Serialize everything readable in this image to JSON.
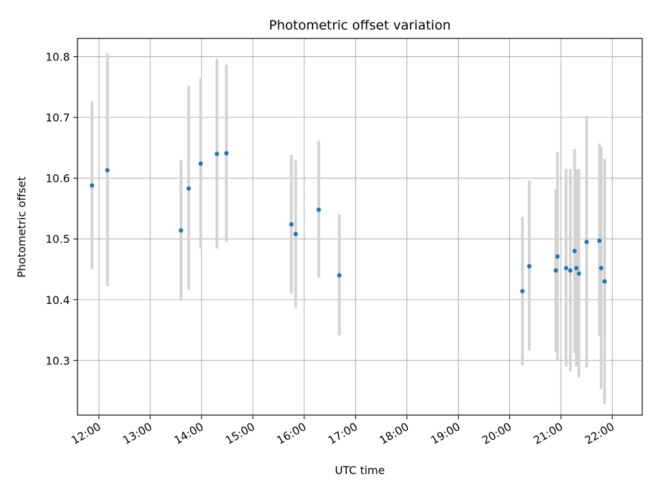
{
  "chart_data": {
    "type": "scatter",
    "title": "Photometric offset variation",
    "xlabel": "UTC time",
    "ylabel": "Photometric offset",
    "x_axis_kind": "time",
    "xlim": [
      "11:35",
      "22:35"
    ],
    "ylim": [
      10.21,
      10.83
    ],
    "xticks": [
      "12:00",
      "13:00",
      "14:00",
      "15:00",
      "16:00",
      "17:00",
      "18:00",
      "19:00",
      "20:00",
      "21:00",
      "22:00"
    ],
    "yticks": [
      10.3,
      10.4,
      10.5,
      10.6,
      10.7,
      10.8
    ],
    "grid": true,
    "colors": {
      "points": "#1f77b4",
      "errorbars": "#d3d3d3",
      "grid": "#b0b0b0"
    },
    "points": [
      {
        "x": "11:52",
        "y": 10.588,
        "ylow": 10.45,
        "yhigh": 10.726
      },
      {
        "x": "12:10",
        "y": 10.613,
        "ylow": 10.422,
        "yhigh": 10.805
      },
      {
        "x": "13:36",
        "y": 10.514,
        "ylow": 10.398,
        "yhigh": 10.63
      },
      {
        "x": "13:45",
        "y": 10.583,
        "ylow": 10.416,
        "yhigh": 10.752
      },
      {
        "x": "13:59",
        "y": 10.624,
        "ylow": 10.484,
        "yhigh": 10.765
      },
      {
        "x": "14:18",
        "y": 10.64,
        "ylow": 10.484,
        "yhigh": 10.796
      },
      {
        "x": "14:29",
        "y": 10.641,
        "ylow": 10.495,
        "yhigh": 10.787
      },
      {
        "x": "15:45",
        "y": 10.524,
        "ylow": 10.41,
        "yhigh": 10.638
      },
      {
        "x": "15:50",
        "y": 10.508,
        "ylow": 10.387,
        "yhigh": 10.63
      },
      {
        "x": "16:17",
        "y": 10.548,
        "ylow": 10.436,
        "yhigh": 10.661
      },
      {
        "x": "16:41",
        "y": 10.44,
        "ylow": 10.341,
        "yhigh": 10.54
      },
      {
        "x": "20:15",
        "y": 10.414,
        "ylow": 10.292,
        "yhigh": 10.536
      },
      {
        "x": "20:23",
        "y": 10.455,
        "ylow": 10.316,
        "yhigh": 10.596
      },
      {
        "x": "20:54",
        "y": 10.448,
        "ylow": 10.314,
        "yhigh": 10.582
      },
      {
        "x": "20:56",
        "y": 10.471,
        "ylow": 10.3,
        "yhigh": 10.643
      },
      {
        "x": "21:06",
        "y": 10.452,
        "ylow": 10.29,
        "yhigh": 10.615
      },
      {
        "x": "21:11",
        "y": 10.448,
        "ylow": 10.282,
        "yhigh": 10.615
      },
      {
        "x": "21:16",
        "y": 10.48,
        "ylow": 10.312,
        "yhigh": 10.648
      },
      {
        "x": "21:18",
        "y": 10.452,
        "ylow": 10.29,
        "yhigh": 10.615
      },
      {
        "x": "21:21",
        "y": 10.443,
        "ylow": 10.272,
        "yhigh": 10.615
      },
      {
        "x": "21:30",
        "y": 10.495,
        "ylow": 10.288,
        "yhigh": 10.703
      },
      {
        "x": "21:45",
        "y": 10.497,
        "ylow": 10.34,
        "yhigh": 10.657
      },
      {
        "x": "21:47",
        "y": 10.452,
        "ylow": 10.253,
        "yhigh": 10.652
      },
      {
        "x": "21:51",
        "y": 10.43,
        "ylow": 10.228,
        "yhigh": 10.632
      }
    ]
  }
}
